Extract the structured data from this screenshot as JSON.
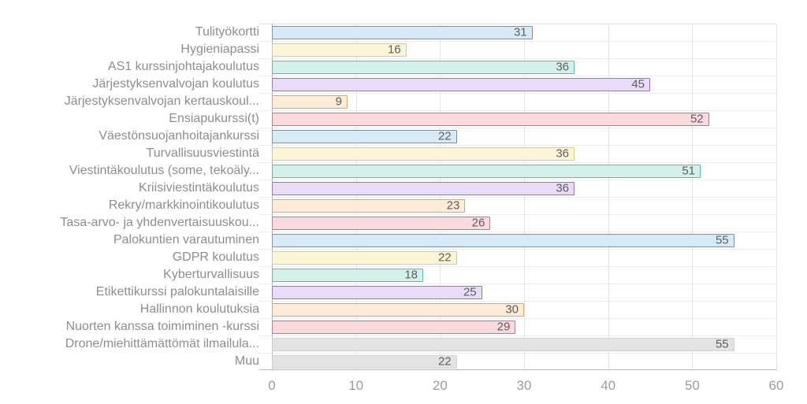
{
  "chart_data": {
    "type": "bar",
    "orientation": "horizontal",
    "title": "",
    "xlabel": "",
    "ylabel": "",
    "xlim": [
      0,
      60
    ],
    "xticks": [
      0,
      10,
      20,
      30,
      40,
      50,
      60
    ],
    "grid": true,
    "legend": false,
    "categories": [
      "Tulityökortti",
      "Hygieniapassi",
      "AS1 kurssinjohtajakoulutus",
      "Järjestyksenvalvojan koulutus",
      "Järjestyksenvalvojan kertauskoul...",
      "Ensiapukurssi(t)",
      "Väestönsuojanhoitajankurssi",
      "Turvallisuusviestintä",
      "Viestintäkoulutus (some, tekoäly...",
      "Kriisiviestintäkoulutus",
      "Rekry/markkinointikoulutus",
      "Tasa-arvo- ja yhdenvertaisuuskou...",
      "Palokuntien varautuminen",
      "GDPR koulutus",
      "Kyberturvallisuus",
      "Etikettikurssi palokuntalaisille",
      "Hallinnon koulutuksia",
      "Nuorten kanssa toimiminen -kurssi",
      "Drone/miehittämättömät ilmailula...",
      "Muu"
    ],
    "values": [
      31,
      16,
      36,
      45,
      9,
      52,
      22,
      36,
      51,
      36,
      23,
      26,
      55,
      22,
      18,
      25,
      30,
      29,
      55,
      22
    ],
    "bar_color_keys": [
      "blue",
      "yellow",
      "teal",
      "purple",
      "orange",
      "red",
      "blue",
      "yellow",
      "teal",
      "purple",
      "orange",
      "red",
      "blue",
      "yellow",
      "teal",
      "purple",
      "orange",
      "red",
      "gray",
      "gray"
    ],
    "palette": {
      "blue": {
        "fill": "#D7EAF8",
        "stroke": "#4E9FD1"
      },
      "yellow": {
        "fill": "#FCF4D7",
        "stroke": "#E7CB6A"
      },
      "teal": {
        "fill": "#D4F0EA",
        "stroke": "#4FBFB4"
      },
      "purple": {
        "fill": "#E8DCF8",
        "stroke": "#9B6BD0"
      },
      "orange": {
        "fill": "#FCEBD7",
        "stroke": "#E8A35A"
      },
      "red": {
        "fill": "#FAD9DF",
        "stroke": "#E2647F"
      },
      "gray": {
        "fill": "#E3E3E3",
        "stroke": "#D2D2D2"
      }
    },
    "value_label_color": "#5d5d5d",
    "category_label_color": "#8d8d8d",
    "tick_label_color": "#9b9b9b"
  }
}
